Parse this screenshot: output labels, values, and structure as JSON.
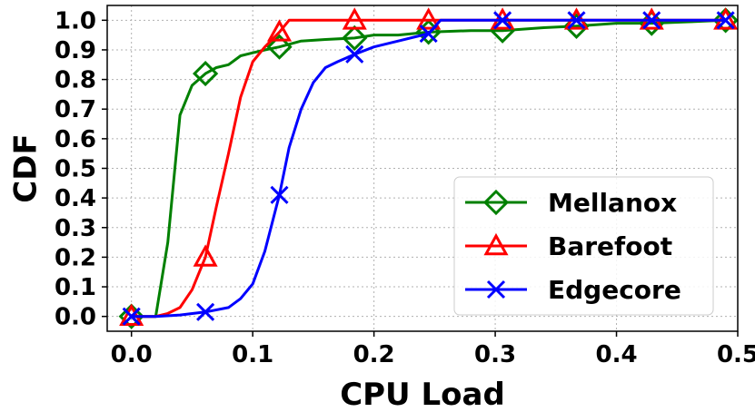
{
  "chart_data": {
    "type": "line",
    "title": "",
    "xlabel": "CPU Load",
    "ylabel": "CDF",
    "xlim": [
      -0.02,
      0.5
    ],
    "ylim": [
      -0.05,
      1.05
    ],
    "xticks": [
      0.0,
      0.1,
      0.2,
      0.3,
      0.4,
      0.5
    ],
    "xtick_labels": [
      "0.0",
      "0.1",
      "0.2",
      "0.3",
      "0.4",
      "0.5"
    ],
    "yticks": [
      0.0,
      0.1,
      0.2,
      0.3,
      0.4,
      0.5,
      0.6,
      0.7,
      0.8,
      0.9,
      1.0
    ],
    "ytick_labels": [
      "0.0",
      "0.1",
      "0.2",
      "0.3",
      "0.4",
      "0.5",
      "0.6",
      "0.7",
      "0.8",
      "0.9",
      "1.0"
    ],
    "grid": true,
    "legend_position": "lower-right",
    "series": [
      {
        "name": "Mellanox",
        "color": "#008000",
        "marker": "diamond",
        "x": [
          0.0,
          0.02,
          0.03,
          0.04,
          0.05,
          0.061,
          0.07,
          0.08,
          0.09,
          0.1,
          0.11,
          0.122,
          0.14,
          0.16,
          0.184,
          0.2,
          0.22,
          0.245,
          0.28,
          0.306,
          0.34,
          0.367,
          0.4,
          0.429,
          0.46,
          0.49
        ],
        "y": [
          0.0,
          0.0,
          0.25,
          0.68,
          0.78,
          0.82,
          0.84,
          0.85,
          0.88,
          0.89,
          0.9,
          0.91,
          0.93,
          0.935,
          0.94,
          0.95,
          0.95,
          0.96,
          0.965,
          0.965,
          0.975,
          0.98,
          0.99,
          0.99,
          0.995,
          1.0
        ],
        "marker_x": [
          0.0,
          0.061,
          0.122,
          0.184,
          0.245,
          0.306,
          0.367,
          0.429,
          0.49
        ],
        "marker_y": [
          0.0,
          0.82,
          0.91,
          0.94,
          0.96,
          0.965,
          0.98,
          0.99,
          1.0
        ]
      },
      {
        "name": "Barefoot",
        "color": "#ff0000",
        "marker": "triangle",
        "x": [
          0.0,
          0.02,
          0.03,
          0.04,
          0.05,
          0.061,
          0.07,
          0.08,
          0.09,
          0.1,
          0.11,
          0.122,
          0.13,
          0.184,
          0.245,
          0.306,
          0.367,
          0.429,
          0.49
        ],
        "y": [
          0.0,
          0.0,
          0.01,
          0.03,
          0.09,
          0.2,
          0.37,
          0.55,
          0.74,
          0.86,
          0.91,
          0.96,
          1.0,
          1.0,
          1.0,
          1.0,
          1.0,
          1.0,
          1.0
        ],
        "marker_x": [
          0.0,
          0.061,
          0.122,
          0.184,
          0.245,
          0.306,
          0.367,
          0.429,
          0.49
        ],
        "marker_y": [
          0.0,
          0.2,
          0.96,
          1.0,
          1.0,
          1.0,
          1.0,
          1.0,
          1.0
        ]
      },
      {
        "name": "Edgecore",
        "color": "#0000ff",
        "marker": "x",
        "x": [
          0.0,
          0.02,
          0.04,
          0.061,
          0.08,
          0.09,
          0.1,
          0.11,
          0.122,
          0.13,
          0.14,
          0.15,
          0.16,
          0.17,
          0.184,
          0.2,
          0.22,
          0.245,
          0.255,
          0.306,
          0.367,
          0.429,
          0.49
        ],
        "y": [
          0.0,
          0.0,
          0.005,
          0.015,
          0.03,
          0.06,
          0.11,
          0.22,
          0.41,
          0.57,
          0.7,
          0.79,
          0.84,
          0.86,
          0.885,
          0.91,
          0.93,
          0.955,
          1.0,
          1.0,
          1.0,
          1.0,
          1.0
        ],
        "marker_x": [
          0.0,
          0.061,
          0.122,
          0.184,
          0.245,
          0.306,
          0.367,
          0.429,
          0.49
        ],
        "marker_y": [
          0.0,
          0.015,
          0.41,
          0.885,
          0.955,
          1.0,
          1.0,
          1.0,
          1.0
        ]
      }
    ]
  }
}
